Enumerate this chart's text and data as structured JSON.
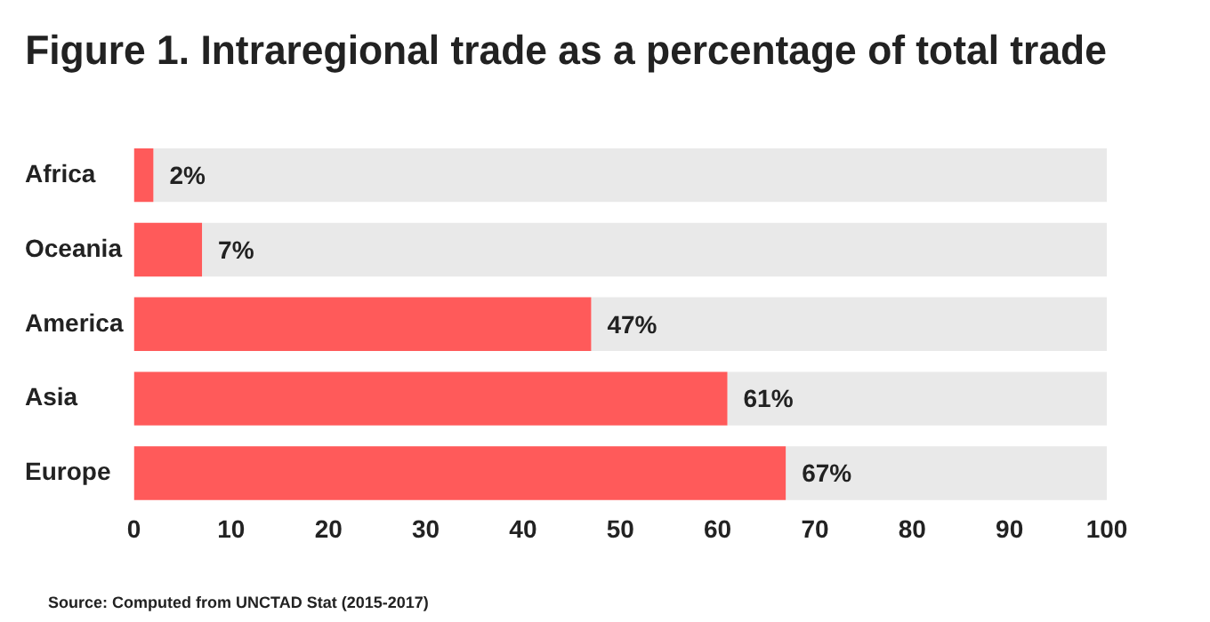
{
  "chart_data": {
    "type": "bar",
    "orientation": "horizontal",
    "title": "Figure 1. Intraregional trade as a percentage of total trade",
    "categories": [
      "Africa",
      "Oceania",
      "America",
      "Asia",
      "Europe"
    ],
    "series": [
      {
        "color": "#ff5a5a",
        "values": [
          2,
          7,
          47,
          61,
          67
        ],
        "value_labels": [
          "2%",
          "7%",
          "47%",
          "61%",
          "67%"
        ]
      },
      {
        "color": "#e9e9e9",
        "values": [
          98,
          93,
          53,
          39,
          33
        ]
      }
    ],
    "xlim": [
      0,
      100
    ],
    "xticks": [
      0,
      10,
      20,
      30,
      40,
      50,
      60,
      70,
      80,
      90,
      100
    ],
    "stacked": true,
    "grid": false,
    "legend": false,
    "annotations": [
      "Source: Computed from UNCTAD Stat (2015-2017)"
    ]
  }
}
